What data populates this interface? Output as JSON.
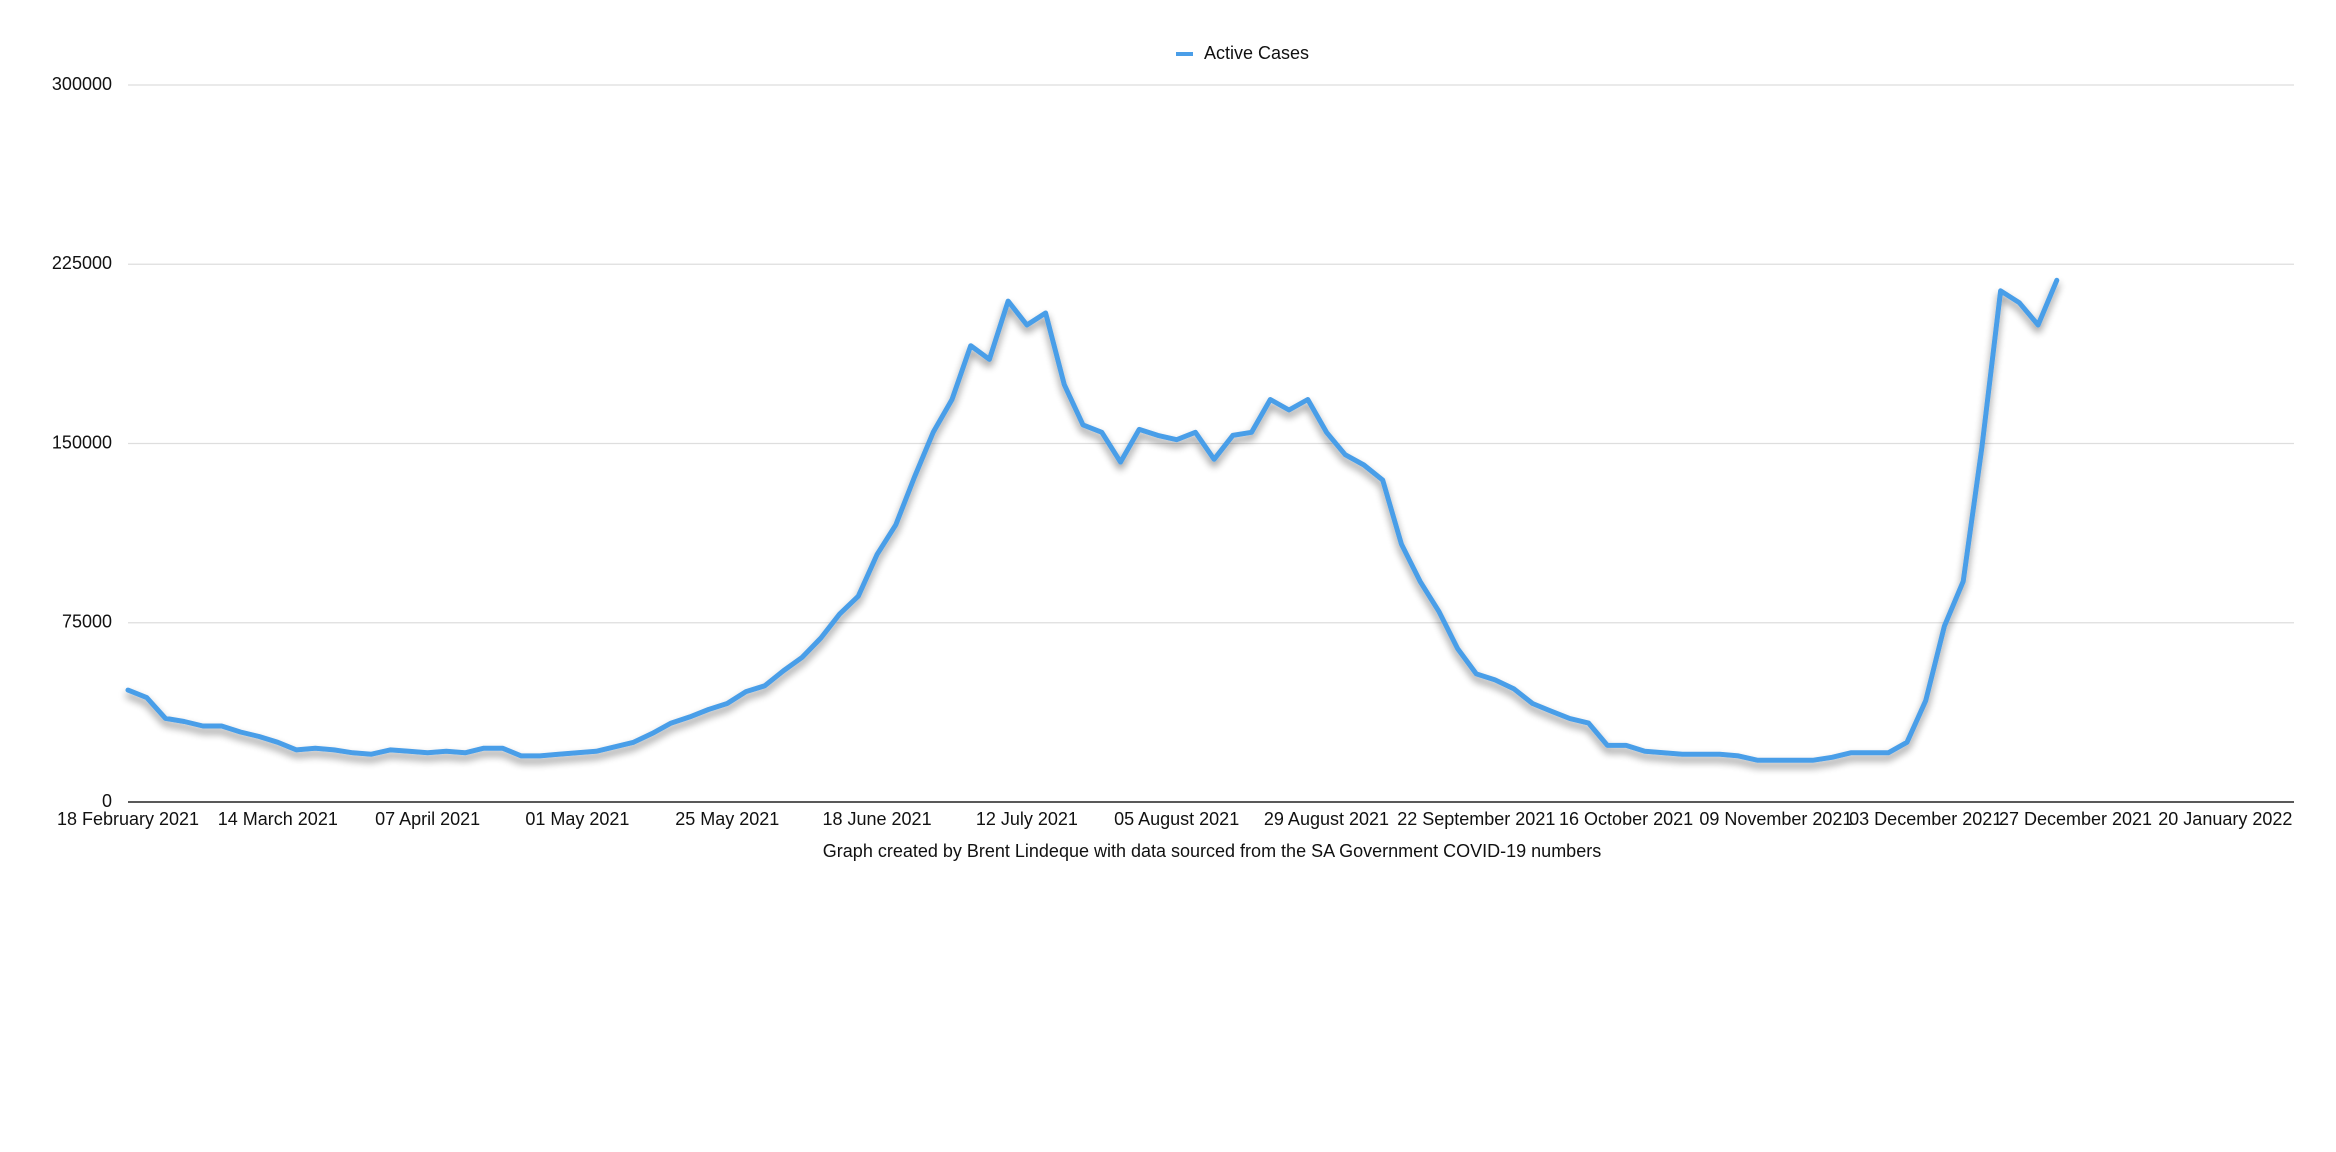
{
  "chart_data": {
    "type": "line",
    "footnote": "Graph created by Brent Lindeque with data sourced from the SA Government COVID-19 numbers",
    "x": [
      "2021-02-18",
      "2021-02-21",
      "2021-02-24",
      "2021-02-27",
      "2021-03-02",
      "2021-03-05",
      "2021-03-08",
      "2021-03-11",
      "2021-03-14",
      "2021-03-17",
      "2021-03-20",
      "2021-03-23",
      "2021-03-26",
      "2021-03-29",
      "2021-04-01",
      "2021-04-04",
      "2021-04-07",
      "2021-04-10",
      "2021-04-13",
      "2021-04-16",
      "2021-04-19",
      "2021-04-22",
      "2021-04-25",
      "2021-04-28",
      "2021-05-01",
      "2021-05-04",
      "2021-05-07",
      "2021-05-10",
      "2021-05-13",
      "2021-05-16",
      "2021-05-19",
      "2021-05-22",
      "2021-05-25",
      "2021-05-28",
      "2021-05-31",
      "2021-06-03",
      "2021-06-06",
      "2021-06-09",
      "2021-06-12",
      "2021-06-15",
      "2021-06-18",
      "2021-06-21",
      "2021-06-24",
      "2021-06-27",
      "2021-06-30",
      "2021-07-03",
      "2021-07-06",
      "2021-07-09",
      "2021-07-12",
      "2021-07-15",
      "2021-07-18",
      "2021-07-21",
      "2021-07-24",
      "2021-07-27",
      "2021-07-30",
      "2021-08-02",
      "2021-08-05",
      "2021-08-08",
      "2021-08-11",
      "2021-08-14",
      "2021-08-17",
      "2021-08-20",
      "2021-08-23",
      "2021-08-26",
      "2021-08-29",
      "2021-09-01",
      "2021-09-04",
      "2021-09-07",
      "2021-09-10",
      "2021-09-13",
      "2021-09-16",
      "2021-09-19",
      "2021-09-22",
      "2021-09-25",
      "2021-09-28",
      "2021-10-01",
      "2021-10-04",
      "2021-10-07",
      "2021-10-10",
      "2021-10-13",
      "2021-10-16",
      "2021-10-19",
      "2021-10-22",
      "2021-10-25",
      "2021-10-28",
      "2021-10-31",
      "2021-11-03",
      "2021-11-06",
      "2021-11-09",
      "2021-11-12",
      "2021-11-15",
      "2021-11-18",
      "2021-11-21",
      "2021-11-24",
      "2021-11-27",
      "2021-11-30",
      "2021-12-03",
      "2021-12-06",
      "2021-12-09",
      "2021-12-12",
      "2021-12-15",
      "2021-12-18",
      "2021-12-21",
      "2021-12-24"
    ],
    "series": [
      {
        "name": "Active Cases",
        "color": "#4a9ee8",
        "values": [
          46800,
          43700,
          35000,
          33700,
          31800,
          31800,
          29300,
          27400,
          25000,
          21800,
          22500,
          21800,
          20600,
          20000,
          21800,
          21200,
          20600,
          21200,
          20600,
          22500,
          22500,
          19300,
          19300,
          20000,
          20600,
          21200,
          23100,
          25000,
          28700,
          33000,
          35600,
          38700,
          41200,
          46200,
          48600,
          54900,
          60500,
          68600,
          78600,
          86100,
          103500,
          116000,
          136000,
          154700,
          168400,
          190900,
          185200,
          209600,
          199600,
          204600,
          174600,
          157800,
          154700,
          142200,
          155900,
          153400,
          151600,
          154700,
          143400,
          153400,
          154700,
          168400,
          164000,
          168400,
          154700,
          145300,
          141000,
          134700,
          107900,
          92300,
          79800,
          64200,
          53600,
          51100,
          47400,
          41200,
          38000,
          34900,
          33000,
          23700,
          23700,
          21200,
          20600,
          20000,
          20000,
          20000,
          19300,
          17500,
          17500,
          17500,
          17500,
          18700,
          20600,
          20600,
          20600,
          25000,
          42400,
          73600,
          92300,
          148400,
          213900,
          208900,
          199600,
          218300
        ]
      }
    ],
    "xlim": [
      "2021-02-18",
      "2022-01-31"
    ],
    "xticks": [
      {
        "value": "2021-02-18",
        "label": "18 February 2021"
      },
      {
        "value": "2021-03-14",
        "label": "14 March 2021"
      },
      {
        "value": "2021-04-07",
        "label": "07 April 2021"
      },
      {
        "value": "2021-05-01",
        "label": "01 May 2021"
      },
      {
        "value": "2021-05-25",
        "label": "25 May 2021"
      },
      {
        "value": "2021-06-18",
        "label": "18 June 2021"
      },
      {
        "value": "2021-07-12",
        "label": "12 July 2021"
      },
      {
        "value": "2021-08-05",
        "label": "05 August 2021"
      },
      {
        "value": "2021-08-29",
        "label": "29 August 2021"
      },
      {
        "value": "2021-09-22",
        "label": "22 September 2021"
      },
      {
        "value": "2021-10-16",
        "label": "16 October 2021"
      },
      {
        "value": "2021-11-09",
        "label": "09 November 2021"
      },
      {
        "value": "2021-12-03",
        "label": "03 December 2021"
      },
      {
        "value": "2021-12-27",
        "label": "27 December 2021"
      },
      {
        "value": "2022-01-20",
        "label": "20 January 2022"
      }
    ],
    "ylim": [
      0,
      300000
    ],
    "yticks": [
      0,
      75000,
      150000,
      225000,
      300000
    ],
    "grid": true,
    "legend": "top"
  }
}
